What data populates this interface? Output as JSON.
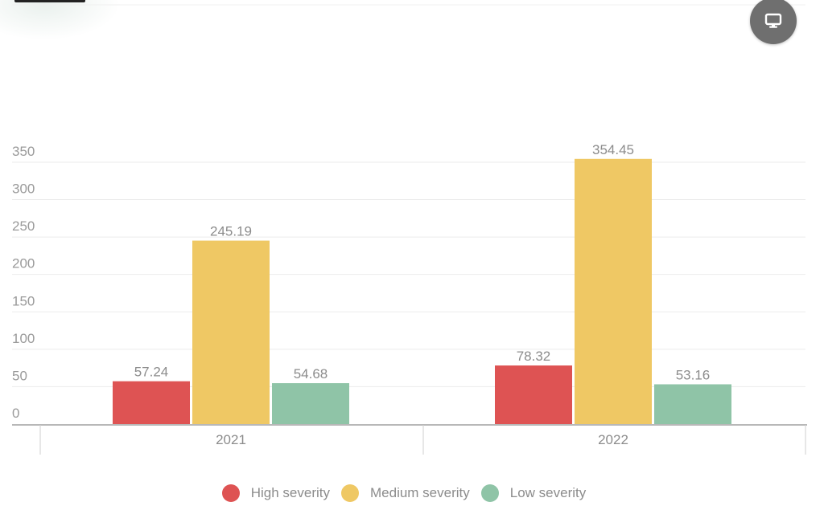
{
  "chart_data": {
    "type": "bar",
    "categories": [
      "2021",
      "2022"
    ],
    "series": [
      {
        "name": "High severity",
        "values": [
          57.24,
          78.32
        ],
        "color": "#de5353"
      },
      {
        "name": "Medium severity",
        "values": [
          245.19,
          354.45
        ],
        "color": "#efc864"
      },
      {
        "name": "Low severity",
        "values": [
          54.68,
          53.16
        ],
        "color": "#8fc4a7"
      }
    ],
    "data_labels": [
      [
        "57.24",
        "78.32"
      ],
      [
        "245.19",
        "354.45"
      ],
      [
        "54.68",
        "53.16"
      ]
    ],
    "yticks": [
      0,
      50,
      100,
      150,
      200,
      250,
      300,
      350
    ],
    "ylim": [
      0,
      360
    ],
    "grid": true,
    "legend_position": "bottom"
  },
  "ui": {
    "screen_button_icon": "monitor-icon"
  }
}
